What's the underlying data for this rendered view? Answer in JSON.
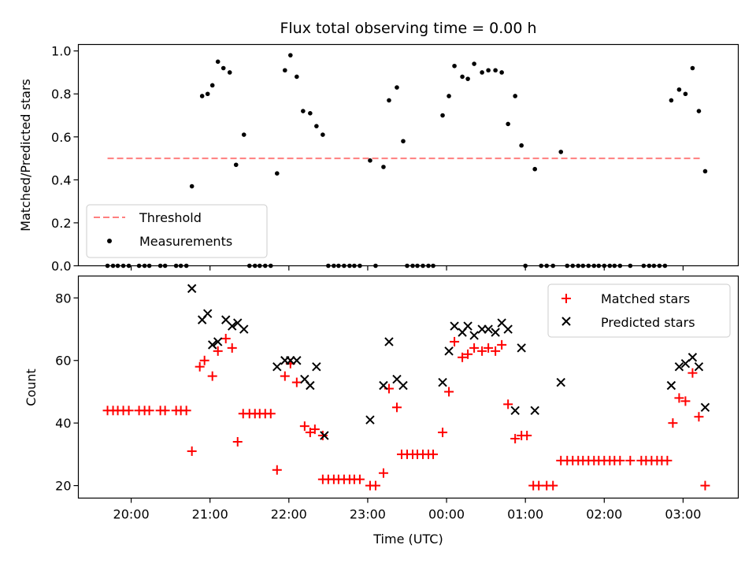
{
  "chart_data": [
    {
      "type": "scatter",
      "title": "Flux total observing time = 0.00 h",
      "xlabel": "",
      "ylabel": "Matched/Predicted stars",
      "ylim": [
        0,
        1.03
      ],
      "yticks": [
        0.0,
        0.2,
        0.4,
        0.6,
        0.8,
        1.0
      ],
      "ytick_labels": [
        "0.0",
        "0.2",
        "0.4",
        "0.6",
        "0.8",
        "1.0"
      ],
      "threshold": {
        "name": "Threshold",
        "value": 0.5,
        "x_start": 19.7,
        "x_end": 27.25,
        "color": "#ff7f7f"
      },
      "legend": {
        "position": "lower-left",
        "entries": [
          "Threshold",
          "Measurements"
        ]
      },
      "series": [
        {
          "name": "Measurements",
          "color": "#000000",
          "marker": "dot",
          "points": [
            [
              19.7,
              0
            ],
            [
              19.77,
              0
            ],
            [
              19.83,
              0
            ],
            [
              19.9,
              0
            ],
            [
              19.97,
              0
            ],
            [
              20.1,
              0
            ],
            [
              20.17,
              0
            ],
            [
              20.23,
              0
            ],
            [
              20.37,
              0
            ],
            [
              20.43,
              0
            ],
            [
              20.57,
              0
            ],
            [
              20.63,
              0
            ],
            [
              20.7,
              0
            ],
            [
              20.77,
              0.37
            ],
            [
              20.9,
              0.79
            ],
            [
              20.97,
              0.8
            ],
            [
              21.03,
              0.84
            ],
            [
              21.1,
              0.95
            ],
            [
              21.17,
              0.92
            ],
            [
              21.25,
              0.9
            ],
            [
              21.33,
              0.47
            ],
            [
              21.43,
              0.61
            ],
            [
              21.5,
              0
            ],
            [
              21.57,
              0
            ],
            [
              21.63,
              0
            ],
            [
              21.7,
              0
            ],
            [
              21.77,
              0
            ],
            [
              21.85,
              0.43
            ],
            [
              21.95,
              0.91
            ],
            [
              22.02,
              0.98
            ],
            [
              22.1,
              0.88
            ],
            [
              22.18,
              0.72
            ],
            [
              22.27,
              0.71
            ],
            [
              22.35,
              0.65
            ],
            [
              22.43,
              0.61
            ],
            [
              22.5,
              0
            ],
            [
              22.57,
              0
            ],
            [
              22.63,
              0
            ],
            [
              22.7,
              0
            ],
            [
              22.77,
              0
            ],
            [
              22.83,
              0
            ],
            [
              22.9,
              0
            ],
            [
              23.1,
              0
            ],
            [
              23.03,
              0.49
            ],
            [
              23.2,
              0.46
            ],
            [
              23.27,
              0.77
            ],
            [
              23.37,
              0.83
            ],
            [
              23.45,
              0.58
            ],
            [
              23.5,
              0
            ],
            [
              23.57,
              0
            ],
            [
              23.63,
              0
            ],
            [
              23.7,
              0
            ],
            [
              23.77,
              0
            ],
            [
              23.83,
              0
            ],
            [
              23.95,
              0.7
            ],
            [
              24.03,
              0.79
            ],
            [
              24.1,
              0.93
            ],
            [
              24.2,
              0.88
            ],
            [
              24.27,
              0.87
            ],
            [
              24.35,
              0.94
            ],
            [
              24.45,
              0.9
            ],
            [
              24.53,
              0.91
            ],
            [
              24.62,
              0.91
            ],
            [
              24.7,
              0.9
            ],
            [
              24.78,
              0.66
            ],
            [
              24.87,
              0.79
            ],
            [
              24.95,
              0.56
            ],
            [
              25.0,
              0
            ],
            [
              25.12,
              0.45
            ],
            [
              25.2,
              0
            ],
            [
              25.27,
              0
            ],
            [
              25.35,
              0
            ],
            [
              25.45,
              0.53
            ],
            [
              25.53,
              0
            ],
            [
              25.6,
              0
            ],
            [
              25.67,
              0
            ],
            [
              25.73,
              0
            ],
            [
              25.8,
              0
            ],
            [
              25.87,
              0
            ],
            [
              25.93,
              0
            ],
            [
              26.0,
              0
            ],
            [
              26.07,
              0
            ],
            [
              26.13,
              0
            ],
            [
              26.2,
              0
            ],
            [
              26.33,
              0
            ],
            [
              26.5,
              0
            ],
            [
              26.57,
              0
            ],
            [
              26.63,
              0
            ],
            [
              26.7,
              0
            ],
            [
              26.77,
              0
            ],
            [
              26.85,
              0.77
            ],
            [
              26.95,
              0.82
            ],
            [
              27.03,
              0.8
            ],
            [
              27.12,
              0.92
            ],
            [
              27.2,
              0.72
            ],
            [
              27.28,
              0.44
            ]
          ]
        }
      ]
    },
    {
      "type": "scatter",
      "title": "",
      "xlabel": "Time (UTC)",
      "ylabel": "Count",
      "xlim": [
        19.33,
        27.7
      ],
      "ylim": [
        16,
        87
      ],
      "yticks": [
        20,
        40,
        60,
        80
      ],
      "ytick_labels": [
        "20",
        "40",
        "60",
        "80"
      ],
      "xticks": [
        20,
        21,
        22,
        23,
        24,
        25,
        26,
        27
      ],
      "xtick_labels": [
        "20:00",
        "21:00",
        "22:00",
        "23:00",
        "00:00",
        "01:00",
        "02:00",
        "03:00"
      ],
      "legend": {
        "position": "upper-right",
        "entries": [
          "Matched stars",
          "Predicted stars"
        ]
      },
      "series": [
        {
          "name": "Matched stars",
          "color": "#ff0000",
          "marker": "plus",
          "points": [
            [
              19.7,
              44
            ],
            [
              19.77,
              44
            ],
            [
              19.83,
              44
            ],
            [
              19.9,
              44
            ],
            [
              19.97,
              44
            ],
            [
              20.1,
              44
            ],
            [
              20.17,
              44
            ],
            [
              20.23,
              44
            ],
            [
              20.37,
              44
            ],
            [
              20.43,
              44
            ],
            [
              20.57,
              44
            ],
            [
              20.63,
              44
            ],
            [
              20.7,
              44
            ],
            [
              20.77,
              31
            ],
            [
              20.87,
              58
            ],
            [
              20.93,
              60
            ],
            [
              21.03,
              55
            ],
            [
              21.1,
              63
            ],
            [
              21.2,
              67
            ],
            [
              21.28,
              64
            ],
            [
              21.35,
              34
            ],
            [
              21.42,
              43
            ],
            [
              21.5,
              43
            ],
            [
              21.57,
              43
            ],
            [
              21.63,
              43
            ],
            [
              21.7,
              43
            ],
            [
              21.77,
              43
            ],
            [
              21.85,
              25
            ],
            [
              21.95,
              55
            ],
            [
              22.02,
              59
            ],
            [
              22.1,
              53
            ],
            [
              22.2,
              39
            ],
            [
              22.27,
              37
            ],
            [
              22.33,
              38
            ],
            [
              22.43,
              36
            ],
            [
              22.43,
              22
            ],
            [
              22.5,
              22
            ],
            [
              22.57,
              22
            ],
            [
              22.63,
              22
            ],
            [
              22.7,
              22
            ],
            [
              22.77,
              22
            ],
            [
              22.83,
              22
            ],
            [
              22.9,
              22
            ],
            [
              23.03,
              20
            ],
            [
              23.1,
              20
            ],
            [
              23.2,
              24
            ],
            [
              23.27,
              51
            ],
            [
              23.37,
              45
            ],
            [
              23.43,
              30
            ],
            [
              23.5,
              30
            ],
            [
              23.57,
              30
            ],
            [
              23.63,
              30
            ],
            [
              23.7,
              30
            ],
            [
              23.77,
              30
            ],
            [
              23.83,
              30
            ],
            [
              23.95,
              37
            ],
            [
              24.03,
              50
            ],
            [
              24.1,
              66
            ],
            [
              24.2,
              61
            ],
            [
              24.27,
              62
            ],
            [
              24.35,
              64
            ],
            [
              24.45,
              63
            ],
            [
              24.53,
              64
            ],
            [
              24.62,
              63
            ],
            [
              24.7,
              65
            ],
            [
              24.78,
              46
            ],
            [
              24.87,
              35
            ],
            [
              24.95,
              36
            ],
            [
              25.02,
              36
            ],
            [
              25.1,
              20
            ],
            [
              25.17,
              20
            ],
            [
              25.27,
              20
            ],
            [
              25.35,
              20
            ],
            [
              25.45,
              28
            ],
            [
              25.53,
              28
            ],
            [
              25.6,
              28
            ],
            [
              25.67,
              28
            ],
            [
              25.73,
              28
            ],
            [
              25.8,
              28
            ],
            [
              25.87,
              28
            ],
            [
              25.93,
              28
            ],
            [
              26.0,
              28
            ],
            [
              26.07,
              28
            ],
            [
              26.13,
              28
            ],
            [
              26.2,
              28
            ],
            [
              26.33,
              28
            ],
            [
              26.47,
              28
            ],
            [
              26.53,
              28
            ],
            [
              26.6,
              28
            ],
            [
              26.67,
              28
            ],
            [
              26.73,
              28
            ],
            [
              26.8,
              28
            ],
            [
              26.87,
              40
            ],
            [
              26.95,
              48
            ],
            [
              27.03,
              47
            ],
            [
              27.12,
              56
            ],
            [
              27.2,
              42
            ],
            [
              27.28,
              20
            ]
          ]
        },
        {
          "name": "Predicted stars",
          "color": "#000000",
          "marker": "x",
          "points": [
            [
              20.77,
              83
            ],
            [
              20.9,
              73
            ],
            [
              20.97,
              75
            ],
            [
              21.03,
              65
            ],
            [
              21.1,
              66
            ],
            [
              21.2,
              73
            ],
            [
              21.28,
              71
            ],
            [
              21.35,
              72
            ],
            [
              21.43,
              70
            ],
            [
              21.85,
              58
            ],
            [
              21.95,
              60
            ],
            [
              22.02,
              60
            ],
            [
              22.1,
              60
            ],
            [
              22.2,
              54
            ],
            [
              22.27,
              52
            ],
            [
              22.35,
              58
            ],
            [
              22.45,
              36
            ],
            [
              23.03,
              41
            ],
            [
              23.2,
              52
            ],
            [
              23.27,
              66
            ],
            [
              23.37,
              54
            ],
            [
              23.45,
              52
            ],
            [
              23.95,
              53
            ],
            [
              24.03,
              63
            ],
            [
              24.1,
              71
            ],
            [
              24.2,
              69
            ],
            [
              24.27,
              71
            ],
            [
              24.35,
              68
            ],
            [
              24.45,
              70
            ],
            [
              24.53,
              70
            ],
            [
              24.62,
              69
            ],
            [
              24.7,
              72
            ],
            [
              24.78,
              70
            ],
            [
              24.87,
              44
            ],
            [
              24.95,
              64
            ],
            [
              25.12,
              44
            ],
            [
              25.45,
              53
            ],
            [
              26.85,
              52
            ],
            [
              26.95,
              58
            ],
            [
              27.03,
              59
            ],
            [
              27.12,
              61
            ],
            [
              27.2,
              58
            ],
            [
              27.28,
              45
            ]
          ]
        }
      ]
    }
  ]
}
